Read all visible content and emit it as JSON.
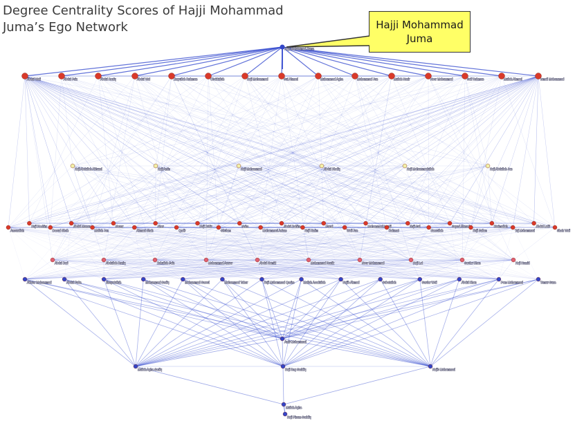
{
  "title": {
    "line1": "Degree Centrality Scores of Hajji Mohammad",
    "line2": "Juma’s Ego Network"
  },
  "callout": {
    "line1": "Hajji Mohammad",
    "line2": "Juma"
  },
  "colors": {
    "edge": "#3a4fd0",
    "node_core": "#d93a2a",
    "node_alt": "#e06070",
    "node_secondary": "#f2f0a8",
    "node_hub": "#3346c8",
    "callout_fill": "#ffff66"
  },
  "network": {
    "ego": "Hajji Mohammad Juma",
    "rows": [
      [
        "Abdul Wali",
        "Abdul Faiz",
        "Abdul Raziq",
        "Abdul Wal",
        "Zaryullah Rahman",
        "Obaidullah",
        "Haji Mohammad",
        "Gul Ahmad",
        "Muhammad Agha",
        "Mohammad Jan",
        "Mullah Nazir",
        "Noor Mohammad",
        "Saif Rahman",
        "Mullah Ahmad",
        "Ismail Mohammad"
      ],
      [
        "Haji Abdullah Akhund",
        "Haji Amin",
        "Haji Mohammad",
        "Abdul Khaliq",
        "Haji Mohammadullah",
        "Haji Abdullah Jan"
      ],
      [
        "Amanullah",
        "Haji Hashim",
        "Daoud Shah",
        "Abdul Manan",
        "Mullah Jan",
        "Nazar",
        "Ahmad Shah",
        "Sher",
        "Qadir",
        "Haji Zahir",
        "Ghulam",
        "Naim",
        "Mohammad Aslam",
        "Abdul Rahim",
        "Haji Karim",
        "Fazal",
        "Wali Jan",
        "Mohammad Ismail",
        "Rahmat",
        "Haji Gul",
        "Nasrullah",
        "Sayed Ahmad",
        "Haji Sultan",
        "Karimullah",
        "Taj Mohammad",
        "Abdul Latif",
        "Shah Wali"
      ],
      [
        "Abdul Bari",
        "Abdullah Raziq",
        "Zahullah Faiz",
        "Mohammad Anwar",
        "Abdul Hamid",
        "Mohammad Razik",
        "Noor Mohammad",
        "Haji Lal",
        "Sardar Khan",
        "Haji Hamid"
      ],
      [
        "Akhtar Mohammad",
        "Abdul Fatta",
        "Enayatullah",
        "Mohammad Sadiq",
        "Mohammad Saeed",
        "Mohammad Taher",
        "Haji Mohammad Qasim",
        "Mullah Asadullah",
        "Najib Ahmad",
        "Sabatullah",
        "Sardar Wali",
        "Abdul Khan",
        "Pam Mohammad",
        "Temur Suza"
      ],
      [
        "Amir Mohammad"
      ],
      [
        "Mullah Agha Sadiq",
        "Haji Rag Saddiq",
        "Najib Mohammad"
      ],
      [
        "Mullah Agha"
      ],
      [
        "Haji Pinam Saddiq"
      ]
    ]
  }
}
